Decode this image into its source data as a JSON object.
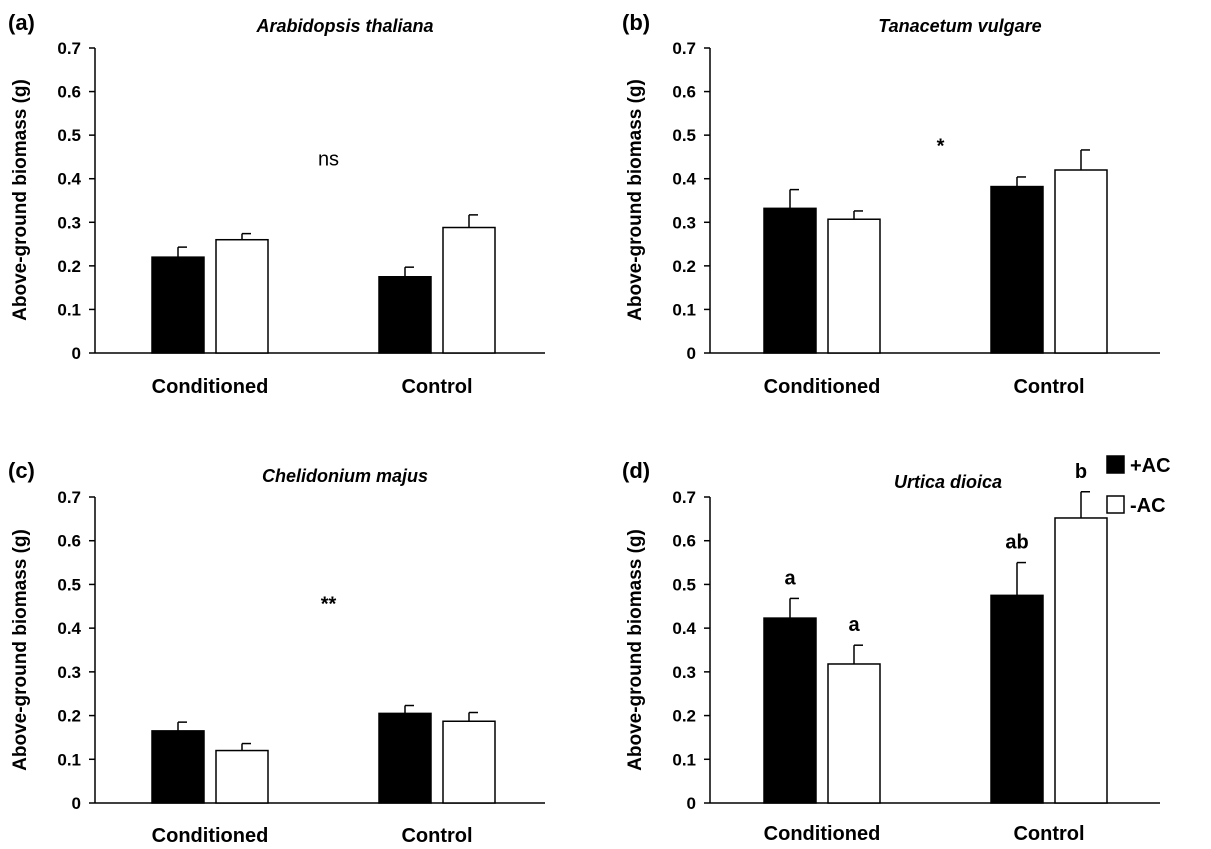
{
  "legend": [
    {
      "label": "+AC",
      "color": "#000000"
    },
    {
      "label": "-AC",
      "color": "#ffffff"
    }
  ],
  "chart_data": [
    {
      "type": "bar",
      "panel": "(a)",
      "title": "Arabidopsis thaliana",
      "ylabel": "Above-ground biomass (g)",
      "categories": [
        "Conditioned",
        "Control"
      ],
      "ylim": [
        0,
        0.7
      ],
      "yticks": [
        "0",
        "0.1",
        "0.2",
        "0.3",
        "0.4",
        "0.5",
        "0.6",
        "0.7"
      ],
      "series": [
        {
          "name": "+AC",
          "values": [
            0.22,
            0.175
          ],
          "errors": [
            0.023,
            0.022
          ]
        },
        {
          "name": "-AC",
          "values": [
            0.26,
            0.288
          ],
          "errors": [
            0.014,
            0.029
          ]
        }
      ],
      "annotations": [
        {
          "text": "ns",
          "x": "center",
          "y": 0.43,
          "bold": false
        }
      ],
      "bar_letters": []
    },
    {
      "type": "bar",
      "panel": "(b)",
      "title": "Tanacetum vulgare",
      "ylabel": "Above-ground biomass (g)",
      "categories": [
        "Conditioned",
        "Control"
      ],
      "ylim": [
        0,
        0.7
      ],
      "yticks": [
        "0",
        "0.1",
        "0.2",
        "0.3",
        "0.4",
        "0.5",
        "0.6",
        "0.7"
      ],
      "series": [
        {
          "name": "+AC",
          "values": [
            0.332,
            0.382
          ],
          "errors": [
            0.043,
            0.022
          ]
        },
        {
          "name": "-AC",
          "values": [
            0.307,
            0.42
          ],
          "errors": [
            0.019,
            0.046
          ]
        }
      ],
      "annotations": [
        {
          "text": "*",
          "x": "center",
          "y": 0.46,
          "bold": true
        }
      ],
      "bar_letters": []
    },
    {
      "type": "bar",
      "panel": "(c)",
      "title": "Chelidonium  majus",
      "ylabel": "Above-ground biomass (g)",
      "categories": [
        "Conditioned",
        "Control"
      ],
      "ylim": [
        0,
        0.7
      ],
      "yticks": [
        "0",
        "0.1",
        "0.2",
        "0.3",
        "0.4",
        "0.5",
        "0.6",
        "0.7"
      ],
      "series": [
        {
          "name": "+AC",
          "values": [
            0.165,
            0.205
          ],
          "errors": [
            0.02,
            0.018
          ]
        },
        {
          "name": "-AC",
          "values": [
            0.12,
            0.187
          ],
          "errors": [
            0.016,
            0.02
          ]
        }
      ],
      "annotations": [
        {
          "text": "**",
          "x": "center",
          "y": 0.44,
          "bold": true
        }
      ],
      "bar_letters": []
    },
    {
      "type": "bar",
      "panel": "(d)",
      "title": "Urtica dioica",
      "ylabel": "Above-ground biomass (g)",
      "categories": [
        "Conditioned",
        "Control"
      ],
      "ylim": [
        0,
        0.7
      ],
      "yticks": [
        "0",
        "0.1",
        "0.2",
        "0.3",
        "0.4",
        "0.5",
        "0.6",
        "0.7"
      ],
      "series": [
        {
          "name": "+AC",
          "values": [
            0.423,
            0.475
          ],
          "errors": [
            0.045,
            0.075
          ]
        },
        {
          "name": "-AC",
          "values": [
            0.318,
            0.652
          ],
          "errors": [
            0.043,
            0.06
          ]
        }
      ],
      "annotations": [],
      "bar_letters": [
        [
          "a",
          "ab"
        ],
        [
          "a",
          "b"
        ]
      ]
    }
  ]
}
